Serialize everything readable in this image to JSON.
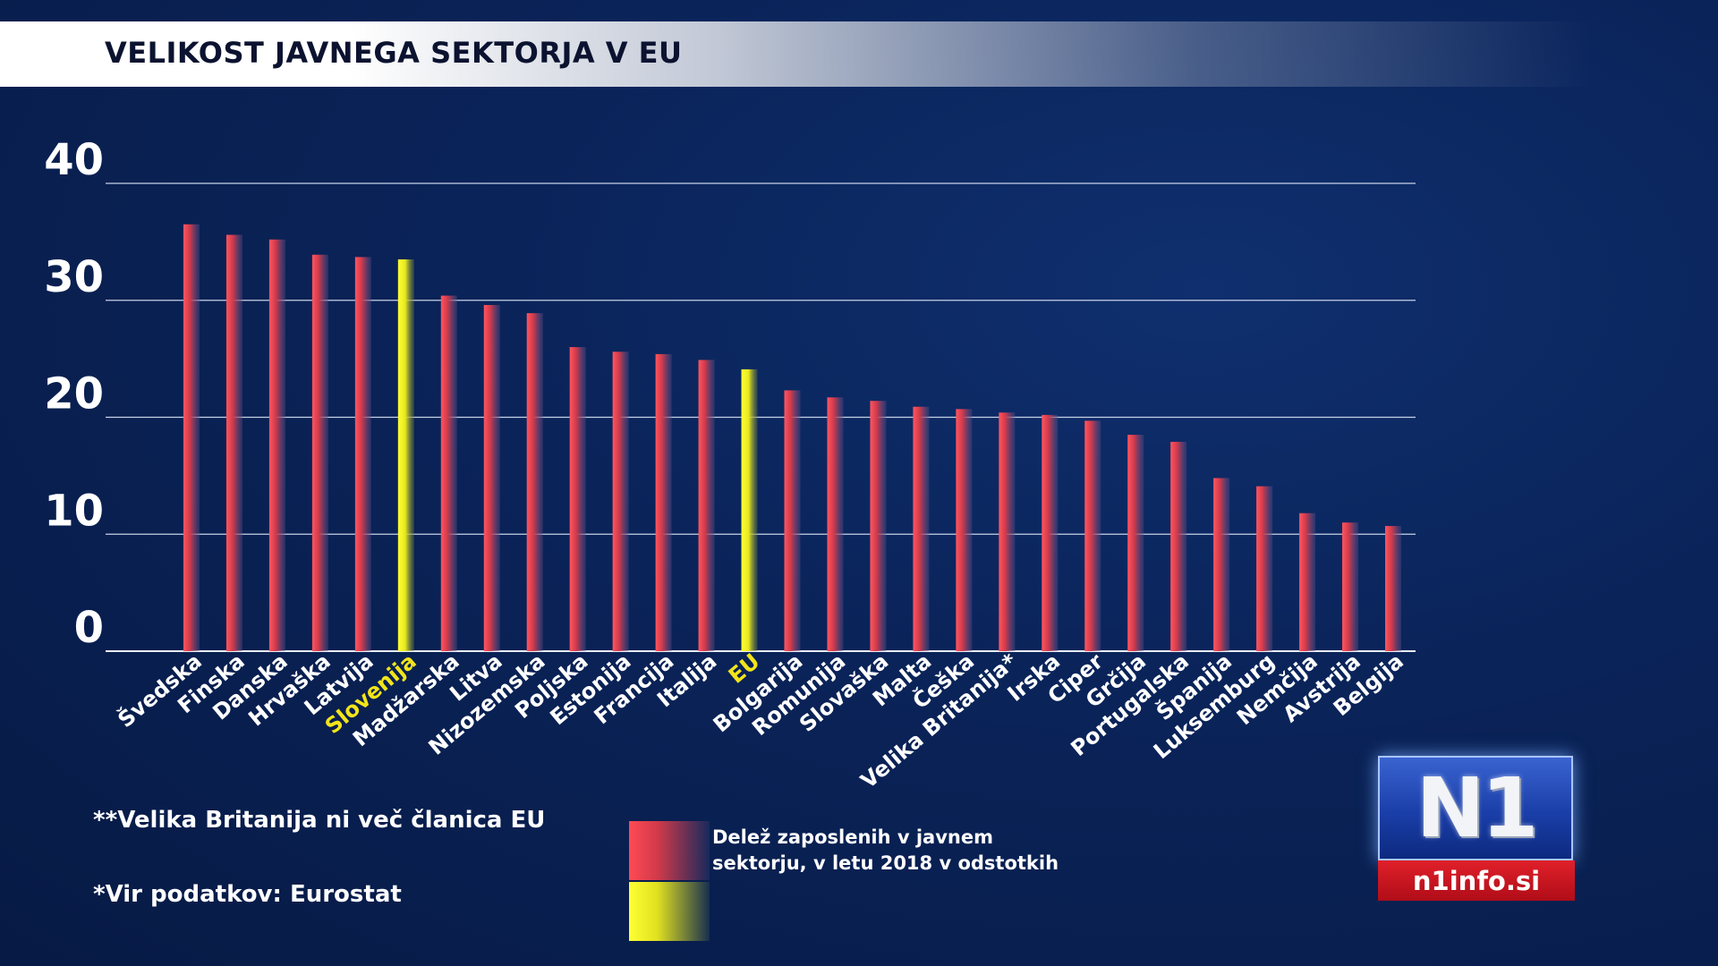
{
  "title": "VELIKOST JAVNEGA SEKTORJA V EU",
  "chart_data": {
    "type": "bar",
    "title": "VELIKOST JAVNEGA SEKTORJA V EU",
    "ylim": [
      0,
      40
    ],
    "yticks": [
      "0",
      "10",
      "20",
      "30",
      "40"
    ],
    "grid": true,
    "categories": [
      "Švedska",
      "Finska",
      "Danska",
      "Hrvaška",
      "Latvija",
      "Slovenija",
      "Madžarska",
      "Litva",
      "Nizozemska",
      "Poljska",
      "Estonija",
      "Francija",
      "Italija",
      "EU",
      "Bolgarija",
      "Romunija",
      "Slovaška",
      "Malta",
      "Češka",
      "Velika Britanija*",
      "Irska",
      "Ciper",
      "Grčija",
      "Portugalska",
      "Španija",
      "Luksemburg",
      "Nemčija",
      "Avstrija",
      "Belgija"
    ],
    "values": [
      36.5,
      35.6,
      35.2,
      33.9,
      33.7,
      33.5,
      30.4,
      29.6,
      28.9,
      26.0,
      25.6,
      25.4,
      24.9,
      24.1,
      22.3,
      21.7,
      21.4,
      20.9,
      20.7,
      20.4,
      20.2,
      19.7,
      18.5,
      17.9,
      14.8,
      14.1,
      11.8,
      11.0,
      10.7
    ],
    "highlighted": [
      "Slovenija",
      "EU"
    ],
    "bar_color": "#e33a48",
    "highlight_color": "#f2f21e",
    "legend": {
      "label": "Delež zaposlenih v javnem sektorju, v letu 2018 v odstotkih"
    }
  },
  "notes": {
    "uk_note": "**Velika Britanija ni več članica EU",
    "source": "*Vir podatkov: Eurostat"
  },
  "logo": {
    "mark": "N1",
    "site": "n1info.si"
  },
  "colors": {
    "background": "#0a2358",
    "bar": "#e33a48",
    "highlight": "#f2f21e",
    "highlight_label": "#f2e41a"
  }
}
